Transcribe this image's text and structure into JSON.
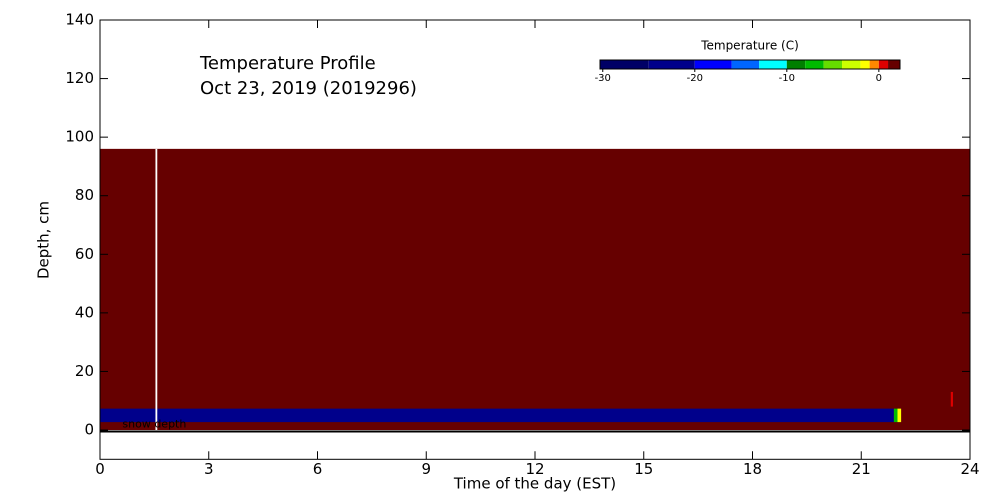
{
  "chart_data": {
    "type": "heatmap",
    "title": [
      "Temperature Profile",
      "Oct 23, 2019 (2019296)"
    ],
    "xlabel": "Time of the day (EST)",
    "ylabel": "Depth, cm",
    "xlim": [
      0,
      24
    ],
    "xticks": [
      0,
      3,
      6,
      9,
      12,
      15,
      18,
      21,
      24
    ],
    "ylim": [
      -10,
      140
    ],
    "yticks": [
      0,
      20,
      40,
      60,
      80,
      100,
      120,
      140
    ],
    "colorbar": {
      "title": "Temperature (C)",
      "clim": [
        -30.3,
        2.3
      ],
      "ticks": [
        -30,
        -20,
        -10,
        0
      ],
      "bounds": [
        -30.3,
        -25,
        -20,
        -16,
        -13,
        -10,
        -8,
        -6,
        -4,
        -2,
        -1,
        0,
        1,
        2.3
      ],
      "colors": [
        "#000066",
        "#00008b",
        "#0000ff",
        "#0066ff",
        "#00ffff",
        "#007f00",
        "#00bb00",
        "#66dd00",
        "#ccff00",
        "#ffff00",
        "#ff8800",
        "#dd0000",
        "#660000"
      ]
    },
    "cells": [
      {
        "x": [
          0,
          24
        ],
        "y": [
          0,
          96
        ],
        "value": 1.5
      },
      {
        "x": [
          0,
          21.9
        ],
        "y": [
          2.7,
          7.3
        ],
        "value": -22
      },
      {
        "x": [
          21.9,
          22.0
        ],
        "y": [
          2.7,
          7.3
        ],
        "value": -7
      },
      {
        "x": [
          22.0,
          22.1
        ],
        "y": [
          2.7,
          7.3
        ],
        "value": -1.5
      },
      {
        "x": [
          23.47,
          23.53
        ],
        "y": [
          8,
          13
        ],
        "value": 0.5
      },
      {
        "x": [
          1.53,
          1.58
        ],
        "y": [
          0,
          96
        ],
        "value": null
      }
    ],
    "snow_depth": {
      "name": "snow depth",
      "x": [
        0,
        24
      ],
      "values": [
        -0.5,
        -0.5
      ],
      "color": "#000000"
    }
  }
}
